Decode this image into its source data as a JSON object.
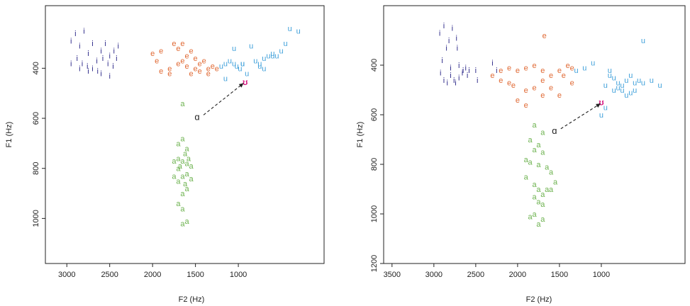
{
  "chart_data": [
    {
      "type": "scatter",
      "title": "",
      "xlabel": "F2 (Hz)",
      "ylabel": "F1 (Hz)",
      "xlim": [
        3250,
        0
      ],
      "ylim": [
        1180,
        150
      ],
      "x_ticks": [
        3000,
        2500,
        2000,
        1500,
        1000
      ],
      "x_tick_labels": [
        "3000",
        "2500",
        "2000",
        "1500",
        "1000"
      ],
      "y_ticks": [
        400,
        600,
        800,
        1000
      ],
      "y_tick_labels": [
        "400",
        "600",
        "800",
        "1000"
      ],
      "series": [
        {
          "name": "i",
          "label": "i",
          "color": "#2f2b8a",
          "points": [
            [
              2950,
              290
            ],
            [
              2900,
              260
            ],
            [
              2850,
              310
            ],
            [
              2800,
              250
            ],
            [
              2750,
              340
            ],
            [
              2700,
              300
            ],
            [
              2650,
              370
            ],
            [
              2600,
              330
            ],
            [
              2550,
              300
            ],
            [
              2500,
              350
            ],
            [
              2450,
              330
            ],
            [
              2400,
              310
            ],
            [
              2950,
              380
            ],
            [
              2880,
              360
            ],
            [
              2820,
              380
            ],
            [
              2760,
              390
            ],
            [
              2700,
              400
            ],
            [
              2640,
              410
            ],
            [
              2580,
              360
            ],
            [
              2520,
              380
            ],
            [
              2460,
              390
            ],
            [
              2420,
              360
            ],
            [
              2600,
              420
            ],
            [
              2500,
              430
            ],
            [
              2850,
              400
            ],
            [
              2750,
              410
            ]
          ]
        },
        {
          "name": "e",
          "label": "e",
          "color": "#e06a35",
          "points": [
            [
              2000,
              340
            ],
            [
              1950,
              370
            ],
            [
              1900,
              330
            ],
            [
              1800,
              400
            ],
            [
              1700,
              320
            ],
            [
              1650,
              300
            ],
            [
              1600,
              350
            ],
            [
              1550,
              330
            ],
            [
              1500,
              360
            ],
            [
              1450,
              380
            ],
            [
              1400,
              370
            ],
            [
              1350,
              400
            ],
            [
              1300,
              390
            ],
            [
              1250,
              400
            ],
            [
              1900,
              410
            ],
            [
              1800,
              420
            ],
            [
              1700,
              380
            ],
            [
              1650,
              370
            ],
            [
              1600,
              390
            ],
            [
              1550,
              420
            ],
            [
              1500,
              400
            ],
            [
              1450,
              410
            ],
            [
              1350,
              420
            ],
            [
              1750,
              300
            ]
          ]
        },
        {
          "name": "u",
          "label": "u",
          "color": "#3fa0da",
          "points": [
            [
              1200,
              390
            ],
            [
              1150,
              380
            ],
            [
              1100,
              370
            ],
            [
              1050,
              380
            ],
            [
              1020,
              390
            ],
            [
              980,
              400
            ],
            [
              950,
              380
            ],
            [
              900,
              420
            ],
            [
              800,
              370
            ],
            [
              750,
              380
            ],
            [
              700,
              360
            ],
            [
              650,
              350
            ],
            [
              600,
              340
            ],
            [
              550,
              350
            ],
            [
              500,
              330
            ],
            [
              450,
              300
            ],
            [
              400,
              240
            ],
            [
              300,
              250
            ],
            [
              850,
              310
            ],
            [
              1050,
              320
            ],
            [
              1150,
              440
            ],
            [
              950,
              380
            ],
            [
              750,
              390
            ],
            [
              700,
              400
            ],
            [
              600,
              350
            ]
          ]
        },
        {
          "name": "a",
          "label": "a",
          "color": "#6db24f",
          "points": [
            [
              1650,
              540
            ],
            [
              1700,
              700
            ],
            [
              1650,
              680
            ],
            [
              1600,
              720
            ],
            [
              1700,
              760
            ],
            [
              1650,
              770
            ],
            [
              1600,
              780
            ],
            [
              1750,
              770
            ],
            [
              1700,
              800
            ],
            [
              1650,
              830
            ],
            [
              1600,
              820
            ],
            [
              1550,
              840
            ],
            [
              1750,
              830
            ],
            [
              1700,
              850
            ],
            [
              1650,
              900
            ],
            [
              1600,
              880
            ],
            [
              1700,
              940
            ],
            [
              1650,
              960
            ],
            [
              1600,
              1010
            ],
            [
              1650,
              1020
            ],
            [
              1550,
              790
            ],
            [
              1620,
              740
            ],
            [
              1680,
              790
            ],
            [
              1580,
              760
            ],
            [
              1620,
              860
            ]
          ]
        },
        {
          "name": "ʊ",
          "label": "ʊ",
          "color": "#d6127d",
          "points": [
            [
              920,
              455
            ]
          ]
        }
      ],
      "annotations": [
        {
          "text": "ɑ",
          "x": 1480,
          "y": 595,
          "arrow_to": [
            940,
            460
          ]
        }
      ]
    },
    {
      "type": "scatter",
      "title": "",
      "xlabel": "F2 (Hz)",
      "ylabel": "F1 (Hz)",
      "xlim": [
        3600,
        0
      ],
      "ylim": [
        1200,
        160
      ],
      "x_ticks": [
        3500,
        3000,
        2500,
        2000,
        1500,
        1000
      ],
      "x_tick_labels": [
        "3500",
        "3000",
        "2500",
        "2000",
        "1500",
        "1000"
      ],
      "y_ticks": [
        400,
        600,
        800,
        1000,
        1200
      ],
      "y_tick_labels": [
        "400",
        "600",
        "800",
        "1000",
        "1200"
      ],
      "series": [
        {
          "name": "i",
          "label": "i",
          "color": "#2f2b8a",
          "points": [
            [
              2930,
              270
            ],
            [
              2880,
              240
            ],
            [
              2850,
              330
            ],
            [
              2820,
              300
            ],
            [
              2780,
              250
            ],
            [
              2730,
              290
            ],
            [
              2720,
              330
            ],
            [
              2700,
              400
            ],
            [
              2650,
              420
            ],
            [
              2600,
              440
            ],
            [
              2920,
              430
            ],
            [
              2880,
              460
            ],
            [
              2840,
              470
            ],
            [
              2800,
              440
            ],
            [
              2760,
              460
            ],
            [
              2740,
              470
            ],
            [
              2700,
              450
            ],
            [
              2660,
              430
            ],
            [
              2620,
              410
            ],
            [
              2580,
              420
            ],
            [
              2300,
              390
            ],
            [
              2250,
              420
            ],
            [
              2500,
              420
            ],
            [
              2480,
              460
            ],
            [
              2800,
              410
            ],
            [
              2900,
              380
            ]
          ]
        },
        {
          "name": "e",
          "label": "e",
          "color": "#e06a35",
          "points": [
            [
              2300,
              440
            ],
            [
              2200,
              420
            ],
            [
              2100,
              410
            ],
            [
              2000,
              420
            ],
            [
              1900,
              410
            ],
            [
              1800,
              400
            ],
            [
              1700,
              420
            ],
            [
              1600,
              440
            ],
            [
              1500,
              420
            ],
            [
              1450,
              440
            ],
            [
              1400,
              400
            ],
            [
              1350,
              410
            ],
            [
              2200,
              460
            ],
            [
              2100,
              470
            ],
            [
              2050,
              480
            ],
            [
              1900,
              500
            ],
            [
              1800,
              490
            ],
            [
              1700,
              460
            ],
            [
              1600,
              490
            ],
            [
              1500,
              520
            ],
            [
              1350,
              470
            ],
            [
              1900,
              560
            ],
            [
              1700,
              520
            ],
            [
              2000,
              540
            ],
            [
              1680,
              280
            ]
          ]
        },
        {
          "name": "u",
          "label": "u",
          "color": "#3fa0da",
          "points": [
            [
              1300,
              420
            ],
            [
              1200,
              410
            ],
            [
              1100,
              390
            ],
            [
              900,
              440
            ],
            [
              850,
              450
            ],
            [
              800,
              470
            ],
            [
              750,
              480
            ],
            [
              700,
              460
            ],
            [
              650,
              440
            ],
            [
              600,
              470
            ],
            [
              550,
              460
            ],
            [
              500,
              470
            ],
            [
              400,
              460
            ],
            [
              300,
              480
            ],
            [
              950,
              480
            ],
            [
              850,
              500
            ],
            [
              800,
              490
            ],
            [
              750,
              500
            ],
            [
              700,
              520
            ],
            [
              650,
              510
            ],
            [
              600,
              500
            ],
            [
              950,
              570
            ],
            [
              1000,
              600
            ],
            [
              500,
              300
            ],
            [
              900,
              420
            ]
          ]
        },
        {
          "name": "a",
          "label": "a",
          "color": "#6db24f",
          "points": [
            [
              1800,
              640
            ],
            [
              1700,
              670
            ],
            [
              1850,
              700
            ],
            [
              1750,
              720
            ],
            [
              1800,
              740
            ],
            [
              1700,
              750
            ],
            [
              1900,
              780
            ],
            [
              1850,
              790
            ],
            [
              1750,
              800
            ],
            [
              1650,
              810
            ],
            [
              1900,
              850
            ],
            [
              1800,
              880
            ],
            [
              1750,
              900
            ],
            [
              1700,
              920
            ],
            [
              1650,
              900
            ],
            [
              1800,
              930
            ],
            [
              1750,
              950
            ],
            [
              1700,
              960
            ],
            [
              1800,
              1000
            ],
            [
              1700,
              1020
            ],
            [
              1850,
              1010
            ],
            [
              1600,
              830
            ],
            [
              1550,
              870
            ],
            [
              1600,
              900
            ],
            [
              1750,
              1040
            ]
          ]
        },
        {
          "name": "ʊ",
          "label": "ʊ",
          "color": "#d6127d",
          "points": [
            [
              1000,
              550
            ]
          ]
        }
      ],
      "annotations": [
        {
          "text": "ɑ",
          "x": 1560,
          "y": 665,
          "arrow_to": [
            1010,
            555
          ]
        }
      ]
    }
  ]
}
